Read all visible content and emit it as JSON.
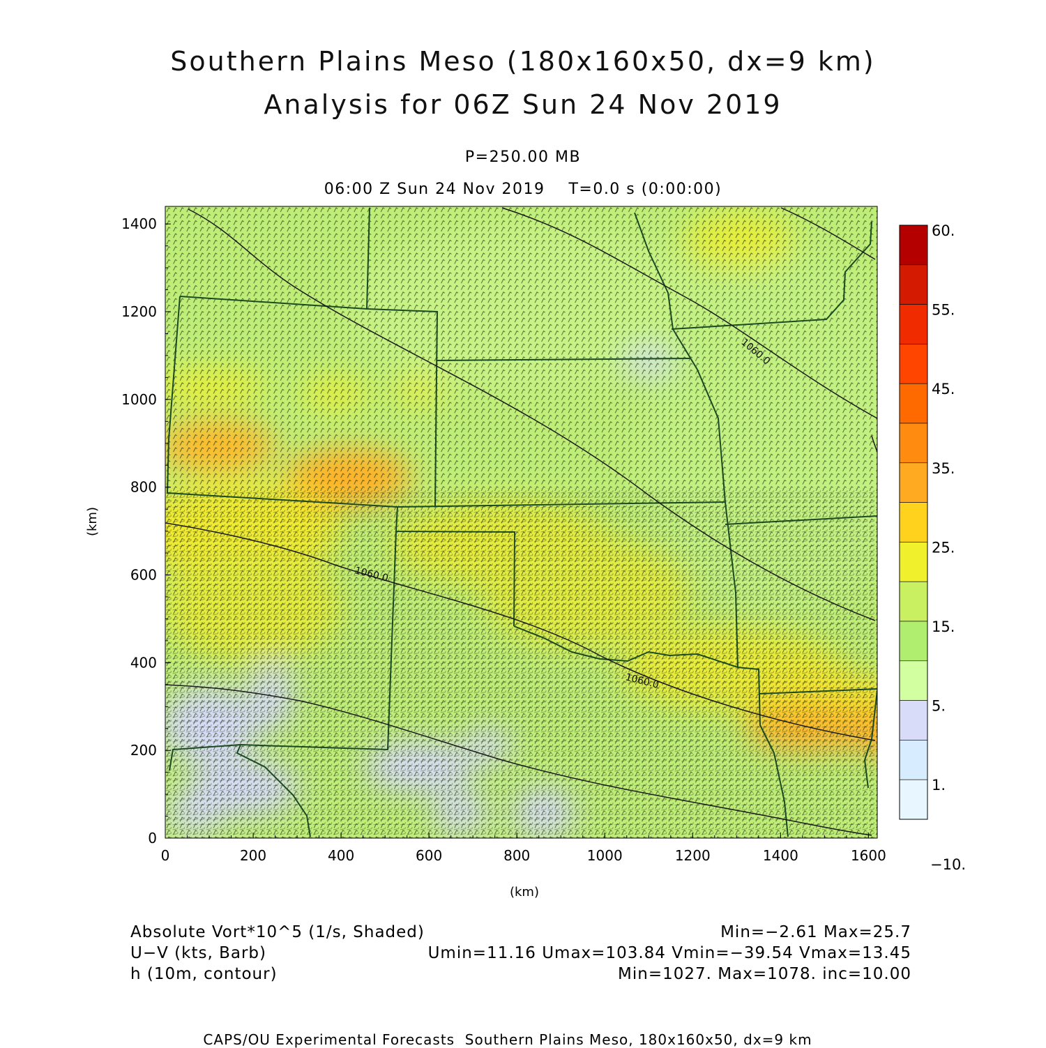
{
  "header": {
    "title_line1": "Southern Plains Meso (180x160x50, dx=9 km)",
    "title_line2": "Analysis for 06Z Sun 24 Nov 2019",
    "level": "P=250.00 MB",
    "valid_time": "06:00 Z Sun 24 Nov 2019    T=0.0 s (0:00:00)"
  },
  "chart_data": {
    "type": "heatmap",
    "xlabel": "(km)",
    "ylabel": "(km)",
    "xlim": [
      0,
      1620
    ],
    "ylim": [
      0,
      1440
    ],
    "x_ticks": [
      "0",
      "200",
      "400",
      "600",
      "800",
      "1000",
      "1200",
      "1400",
      "1600"
    ],
    "y_ticks": [
      "0",
      "200",
      "400",
      "600",
      "800",
      "1000",
      "1200",
      "1400"
    ],
    "colorbar": {
      "labels": [
        "60.",
        "55.",
        "45.",
        "35.",
        "25.",
        "15.",
        "5.",
        "1.",
        "−10."
      ],
      "colors": [
        "#b50000",
        "#d41a00",
        "#f12b00",
        "#ff4500",
        "#ff6a00",
        "#ff8c10",
        "#ffaa20",
        "#ffd21e",
        "#f0f02c",
        "#c8f060",
        "#b0ee70",
        "#d2ffa0",
        "#d8dcf8",
        "#d8ecff",
        "#e8f6ff"
      ]
    },
    "contour_labels": [
      "1060.0",
      "1060.0",
      "1060.0"
    ]
  },
  "legend": {
    "field1_name": "Absolute Vort*10^5 (1/s, Shaded)",
    "field1_stats": "Min=−2.61 Max=25.7",
    "field2_name": "U−V (kts, Barb)",
    "field2_stats": "Umin=11.16 Umax=103.84 Vmin=−39.54 Vmax=13.45",
    "field3_name": "h (10m, contour)",
    "field3_stats": "Min=1027. Max=1078. inc=10.00"
  },
  "footer": "CAPS/OU Experimental Forecasts  Southern Plains Meso, 180x160x50, dx=9 km"
}
